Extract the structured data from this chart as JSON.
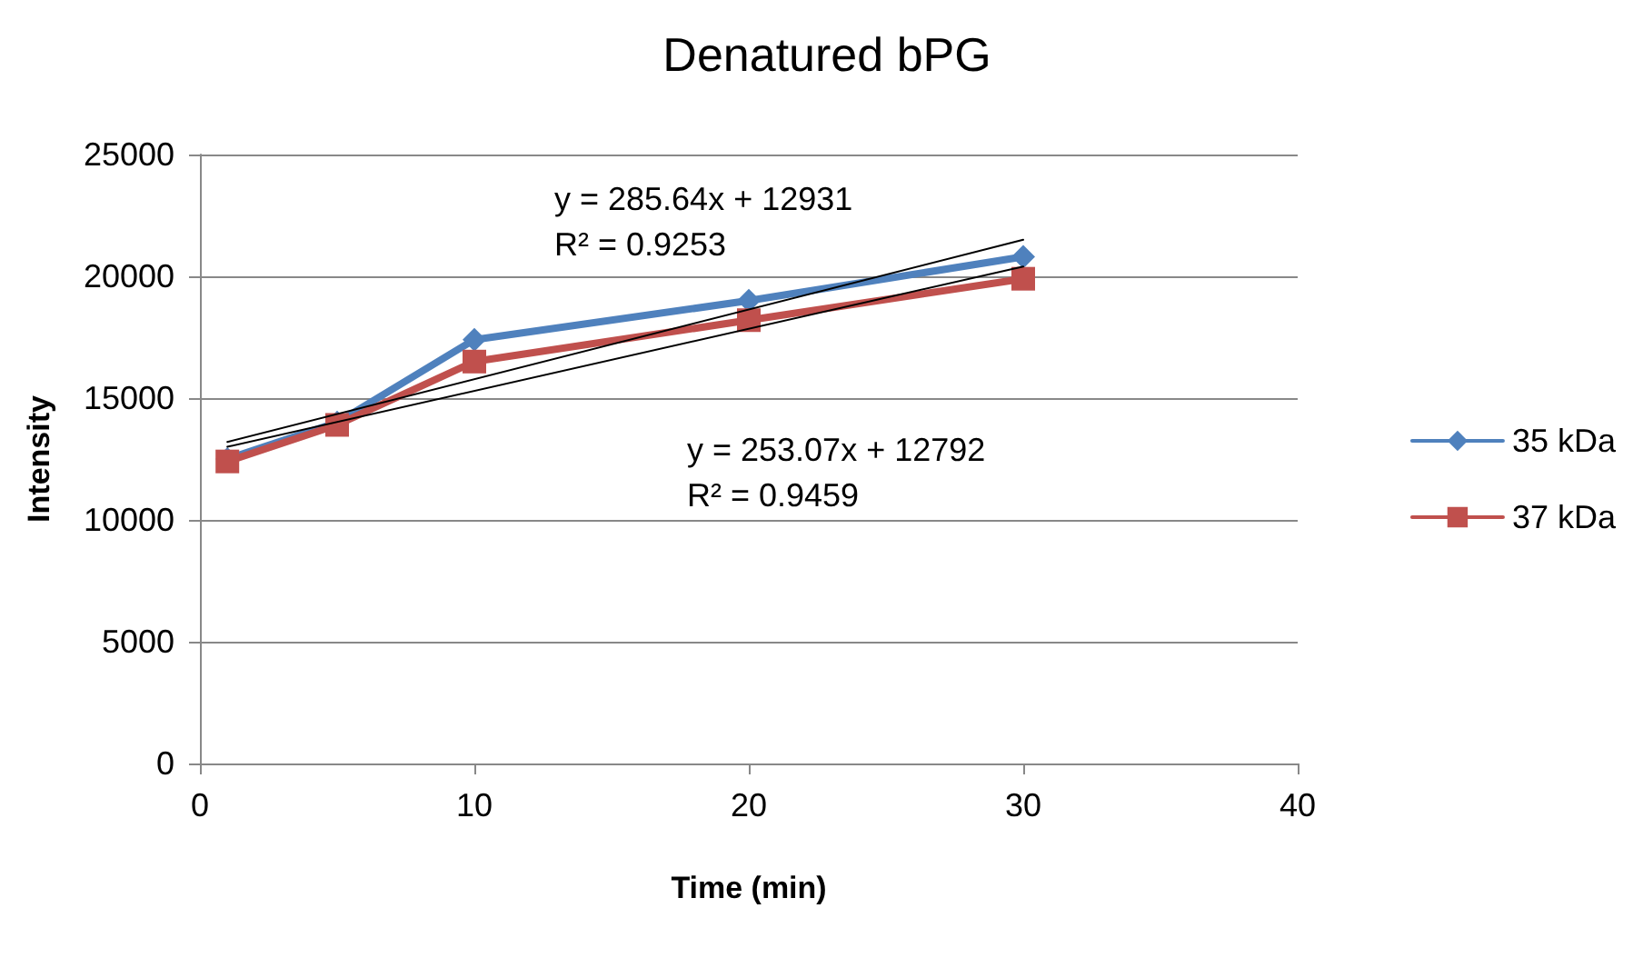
{
  "chart_data": {
    "type": "line",
    "title": "Denatured bPG",
    "xlabel": "Time (min)",
    "ylabel": "Intensity",
    "xlim": [
      0,
      40
    ],
    "xticks": [
      0,
      10,
      20,
      30,
      40
    ],
    "ylim": [
      0,
      25000
    ],
    "yticks": [
      0,
      5000,
      10000,
      15000,
      20000,
      25000
    ],
    "grid": "y",
    "legend": "right",
    "series": [
      {
        "name": "35 kDa",
        "color": "#4f81bd",
        "marker": "diamond",
        "x": [
          1,
          5,
          10,
          20,
          30
        ],
        "values": [
          12500,
          14000,
          17400,
          19000,
          20800
        ]
      },
      {
        "name": "37 kDa",
        "color": "#c0504d",
        "marker": "square",
        "x": [
          1,
          5,
          10,
          20,
          30
        ],
        "values": [
          12400,
          13900,
          16500,
          18200,
          19900
        ]
      },
      {
        "color": "#000000",
        "marker": "none",
        "x": [
          1,
          30
        ],
        "values": [
          13200,
          21500
        ]
      },
      {
        "color": "#000000",
        "marker": "none",
        "x": [
          1,
          30
        ],
        "values": [
          13000,
          20400
        ]
      }
    ],
    "annotations": [
      "y = 285.64x + 12931\nR² = 0.9253",
      "y = 253.07x + 12792\nR² = 0.9459"
    ]
  }
}
